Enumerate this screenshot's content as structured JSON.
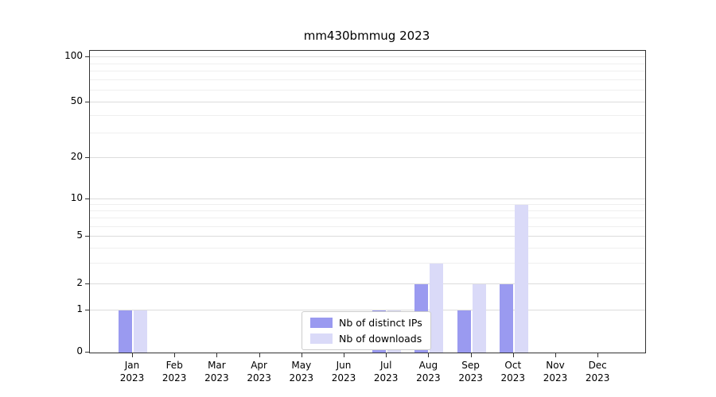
{
  "chart_data": {
    "type": "bar",
    "title": "mm430bmmug 2023",
    "year_label": "2023",
    "categories": [
      "Jan",
      "Feb",
      "Mar",
      "Apr",
      "May",
      "Jun",
      "Jul",
      "Aug",
      "Sep",
      "Oct",
      "Nov",
      "Dec"
    ],
    "series": [
      {
        "name": "Nb of distinct IPs",
        "color": "#9a9af0",
        "values": [
          1,
          0,
          0,
          0,
          0,
          0,
          1,
          2,
          1,
          2,
          0,
          0
        ]
      },
      {
        "name": "Nb of downloads",
        "color": "#dadaf8",
        "values": [
          1,
          0,
          0,
          0,
          0,
          0,
          1,
          3,
          2,
          9,
          0,
          0
        ]
      }
    ],
    "xlabel": "",
    "ylabel": "",
    "yscale": "log-like-with-zero",
    "ylim": [
      0,
      110
    ],
    "y_ticks": [
      0,
      1,
      2,
      5,
      10,
      20,
      50,
      100
    ],
    "y_minor_ticks": [
      3,
      4,
      6,
      7,
      8,
      9,
      30,
      40,
      60,
      70,
      80,
      90
    ],
    "grid": "horizontal",
    "legend_position": "lower center"
  }
}
